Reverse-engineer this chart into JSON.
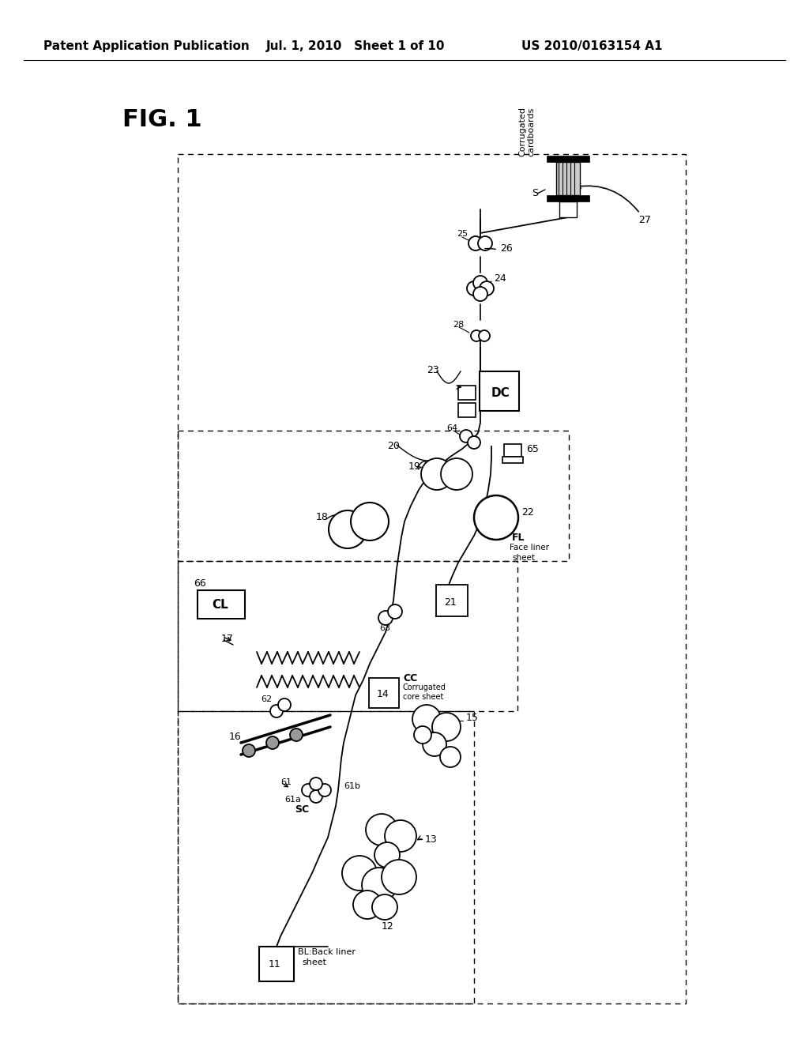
{
  "background_color": "#ffffff",
  "header_left": "Patent Application Publication",
  "header_center": "Jul. 1, 2010   Sheet 1 of 10",
  "header_right": "US 2010/0163154 A1",
  "fig_label": "FIG. 1",
  "header_fontsize": 11,
  "fig_fontsize": 22
}
